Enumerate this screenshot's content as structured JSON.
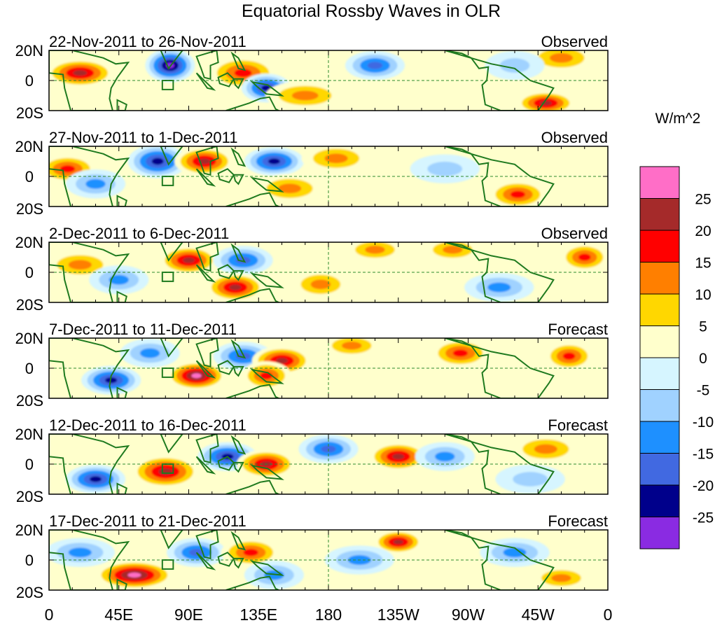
{
  "chart_data": {
    "type": "heatmap",
    "title": "Equatorial Rossby Waves in OLR",
    "units_label": "W/m^2",
    "x_ticks": [
      "0",
      "45E",
      "90E",
      "135E",
      "180",
      "135W",
      "90W",
      "45W",
      "0"
    ],
    "y_ticks": [
      "20N",
      "0",
      "20S"
    ],
    "colorbar": {
      "boundaries": [
        "25",
        "20",
        "15",
        "10",
        "5",
        "0",
        "-5",
        "-10",
        "-15",
        "-20",
        "-25"
      ],
      "colors": [
        "#ff6ec7",
        "#a52a2a",
        "#ff0000",
        "#ff7f00",
        "#ffd700",
        "#ffffcc",
        "#d6f5ff",
        "#a0d2ff",
        "#1e90ff",
        "#4169e1",
        "#00008b",
        "#8a2be2"
      ]
    },
    "panels": [
      {
        "period": "22-Nov-2011 to 26-Nov-2011",
        "status": "Observed",
        "anomalies": [
          {
            "lon": 20,
            "lat": 5,
            "value": 22,
            "spread_lon": 14,
            "spread_lat": 6
          },
          {
            "lon": 78,
            "lat": 10,
            "value": -28,
            "spread_lon": 10,
            "spread_lat": 7
          },
          {
            "lon": 125,
            "lat": 5,
            "value": 16,
            "spread_lon": 14,
            "spread_lat": 7
          },
          {
            "lon": 140,
            "lat": -5,
            "value": -22,
            "spread_lon": 10,
            "spread_lat": 6
          },
          {
            "lon": 165,
            "lat": -10,
            "value": 12,
            "spread_lon": 16,
            "spread_lat": 6
          },
          {
            "lon": 210,
            "lat": 10,
            "value": -16,
            "spread_lon": 12,
            "spread_lat": 6
          },
          {
            "lon": 320,
            "lat": -15,
            "value": 20,
            "spread_lon": 12,
            "spread_lat": 5
          },
          {
            "lon": 330,
            "lat": 15,
            "value": 10,
            "spread_lon": 14,
            "spread_lat": 6
          },
          {
            "lon": 300,
            "lat": 10,
            "value": -8,
            "spread_lon": 12,
            "spread_lat": 6
          }
        ]
      },
      {
        "period": "27-Nov-2011 to 1-Dec-2011",
        "status": "Observed",
        "anomalies": [
          {
            "lon": 12,
            "lat": 5,
            "value": 18,
            "spread_lon": 12,
            "spread_lat": 6
          },
          {
            "lon": 70,
            "lat": 10,
            "value": -22,
            "spread_lon": 12,
            "spread_lat": 7
          },
          {
            "lon": 100,
            "lat": 10,
            "value": 24,
            "spread_lon": 12,
            "spread_lat": 6
          },
          {
            "lon": 145,
            "lat": 10,
            "value": -21,
            "spread_lon": 12,
            "spread_lat": 6
          },
          {
            "lon": 155,
            "lat": -8,
            "value": 12,
            "spread_lon": 14,
            "spread_lat": 6
          },
          {
            "lon": 185,
            "lat": 12,
            "value": 10,
            "spread_lon": 14,
            "spread_lat": 6
          },
          {
            "lon": 255,
            "lat": 5,
            "value": -8,
            "spread_lon": 14,
            "spread_lat": 6
          },
          {
            "lon": 302,
            "lat": -12,
            "value": 15,
            "spread_lon": 12,
            "spread_lat": 6
          },
          {
            "lon": 30,
            "lat": -5,
            "value": -10,
            "spread_lon": 12,
            "spread_lat": 6
          }
        ]
      },
      {
        "period": "2-Dec-2011 to 6-Dec-2011",
        "status": "Observed",
        "anomalies": [
          {
            "lon": 20,
            "lat": 5,
            "value": 10,
            "spread_lon": 14,
            "spread_lat": 6
          },
          {
            "lon": 90,
            "lat": 8,
            "value": 24,
            "spread_lon": 12,
            "spread_lat": 6
          },
          {
            "lon": 125,
            "lat": 8,
            "value": -18,
            "spread_lon": 12,
            "spread_lat": 6
          },
          {
            "lon": 120,
            "lat": -10,
            "value": 20,
            "spread_lon": 12,
            "spread_lat": 6
          },
          {
            "lon": 175,
            "lat": -8,
            "value": 12,
            "spread_lon": 12,
            "spread_lat": 6
          },
          {
            "lon": 210,
            "lat": 15,
            "value": 14,
            "spread_lon": 12,
            "spread_lat": 5
          },
          {
            "lon": 260,
            "lat": 15,
            "value": 14,
            "spread_lon": 12,
            "spread_lat": 5
          },
          {
            "lon": 345,
            "lat": 10,
            "value": 18,
            "spread_lon": 10,
            "spread_lat": 6
          },
          {
            "lon": 290,
            "lat": -10,
            "value": -12,
            "spread_lon": 14,
            "spread_lat": 6
          },
          {
            "lon": 45,
            "lat": -5,
            "value": -12,
            "spread_lon": 12,
            "spread_lat": 6
          }
        ]
      },
      {
        "period": "7-Dec-2011 to 11-Dec-2011",
        "status": "Forecast",
        "anomalies": [
          {
            "lon": 40,
            "lat": -8,
            "value": -20,
            "spread_lon": 12,
            "spread_lat": 6
          },
          {
            "lon": 95,
            "lat": -5,
            "value": 26,
            "spread_lon": 12,
            "spread_lat": 6
          },
          {
            "lon": 125,
            "lat": 8,
            "value": -18,
            "spread_lon": 12,
            "spread_lat": 6
          },
          {
            "lon": 150,
            "lat": 5,
            "value": 20,
            "spread_lon": 12,
            "spread_lat": 6
          },
          {
            "lon": 140,
            "lat": -5,
            "value": 16,
            "spread_lon": 10,
            "spread_lat": 6
          },
          {
            "lon": 195,
            "lat": 15,
            "value": 12,
            "spread_lon": 12,
            "spread_lat": 5
          },
          {
            "lon": 265,
            "lat": 10,
            "value": 18,
            "spread_lon": 12,
            "spread_lat": 6
          },
          {
            "lon": 335,
            "lat": 8,
            "value": 15,
            "spread_lon": 10,
            "spread_lat": 6
          },
          {
            "lon": 65,
            "lat": 10,
            "value": -12,
            "spread_lon": 12,
            "spread_lat": 6
          }
        ]
      },
      {
        "period": "12-Dec-2011 to 16-Dec-2011",
        "status": "Forecast",
        "anomalies": [
          {
            "lon": 30,
            "lat": -10,
            "value": -20,
            "spread_lon": 12,
            "spread_lat": 6
          },
          {
            "lon": 75,
            "lat": -5,
            "value": 24,
            "spread_lon": 14,
            "spread_lat": 7
          },
          {
            "lon": 115,
            "lat": 5,
            "value": -22,
            "spread_lon": 12,
            "spread_lat": 6
          },
          {
            "lon": 140,
            "lat": 0,
            "value": 22,
            "spread_lon": 12,
            "spread_lat": 6
          },
          {
            "lon": 180,
            "lat": 10,
            "value": -16,
            "spread_lon": 12,
            "spread_lat": 6
          },
          {
            "lon": 225,
            "lat": 5,
            "value": 20,
            "spread_lon": 12,
            "spread_lat": 6
          },
          {
            "lon": 255,
            "lat": 5,
            "value": -12,
            "spread_lon": 12,
            "spread_lat": 6
          },
          {
            "lon": 320,
            "lat": 10,
            "value": 10,
            "spread_lon": 14,
            "spread_lat": 6
          },
          {
            "lon": 310,
            "lat": -10,
            "value": -8,
            "spread_lon": 14,
            "spread_lat": 6
          }
        ]
      },
      {
        "period": "17-Dec-2011 to 21-Dec-2011",
        "status": "Forecast",
        "anomalies": [
          {
            "lon": 55,
            "lat": -10,
            "value": 28,
            "spread_lon": 16,
            "spread_lat": 6
          },
          {
            "lon": 95,
            "lat": 5,
            "value": -18,
            "spread_lon": 12,
            "spread_lat": 6
          },
          {
            "lon": 130,
            "lat": 5,
            "value": 16,
            "spread_lon": 12,
            "spread_lat": 6
          },
          {
            "lon": 145,
            "lat": -10,
            "value": -14,
            "spread_lon": 12,
            "spread_lat": 6
          },
          {
            "lon": 225,
            "lat": 12,
            "value": 22,
            "spread_lon": 10,
            "spread_lat": 5
          },
          {
            "lon": 200,
            "lat": 0,
            "value": -12,
            "spread_lon": 14,
            "spread_lat": 6
          },
          {
            "lon": 300,
            "lat": 5,
            "value": -10,
            "spread_lon": 14,
            "spread_lat": 6
          },
          {
            "lon": 330,
            "lat": -12,
            "value": 14,
            "spread_lon": 12,
            "spread_lat": 5
          },
          {
            "lon": 20,
            "lat": 5,
            "value": -10,
            "spread_lon": 14,
            "spread_lat": 6
          }
        ]
      }
    ]
  }
}
